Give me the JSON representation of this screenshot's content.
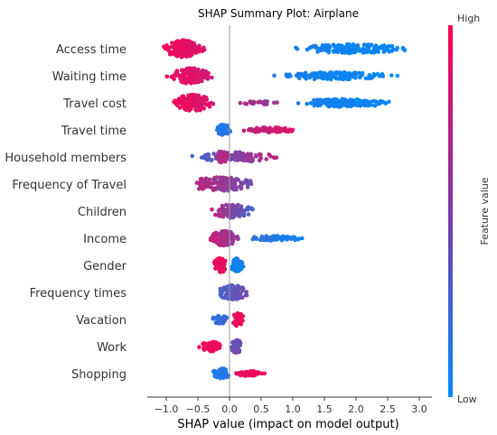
{
  "chart_data": {
    "type": "scatter",
    "subtype": "shap-beeswarm",
    "title": "SHAP Summary Plot: Airplane",
    "xlabel": "SHAP value (impact on model output)",
    "x_ticks": [
      -1.0,
      -0.5,
      0.0,
      0.5,
      1.0,
      1.5,
      2.0,
      2.5,
      3.0
    ],
    "x_tick_labels": [
      "−1.0",
      "−0.5",
      "0.0",
      "0.5",
      "1.0",
      "1.5",
      "2.0",
      "2.5",
      "3.0"
    ],
    "xlim": [
      -1.3,
      3.2
    ],
    "zero_line": true,
    "colorbar": {
      "label": "Feature value",
      "high_label": "High",
      "low_label": "Low",
      "high_color": "#ff0051",
      "low_color": "#008bfb"
    },
    "features": [
      {
        "name": "Access time",
        "clusters": [
          {
            "x0": -1.1,
            "x1": -0.35,
            "n": 140,
            "w": 0.35,
            "v0": 0.95,
            "v1": 0.85
          },
          {
            "x0": 0.9,
            "x1": 3.0,
            "n": 160,
            "w": 0.18,
            "v0": 0.08,
            "v1": 0.02
          }
        ]
      },
      {
        "name": "Waiting time",
        "clusters": [
          {
            "x0": -1.05,
            "x1": -0.2,
            "n": 130,
            "w": 0.32,
            "v0": 0.95,
            "v1": 0.8
          },
          {
            "x0": 0.55,
            "x1": 2.75,
            "n": 150,
            "w": 0.15,
            "v0": 0.1,
            "v1": 0.02
          }
        ]
      },
      {
        "name": "Travel cost",
        "clusters": [
          {
            "x0": -0.95,
            "x1": -0.2,
            "n": 130,
            "w": 0.33,
            "v0": 0.95,
            "v1": 0.82
          },
          {
            "x0": 0.05,
            "x1": 0.8,
            "n": 25,
            "w": 0.08,
            "v0": 0.75,
            "v1": 0.55
          },
          {
            "x0": 0.9,
            "x1": 2.75,
            "n": 150,
            "w": 0.16,
            "v0": 0.1,
            "v1": 0.02
          }
        ]
      },
      {
        "name": "Travel time",
        "clusters": [
          {
            "x0": -0.25,
            "x1": 0.05,
            "n": 50,
            "w": 0.22,
            "v0": 0.1,
            "v1": 0.2
          },
          {
            "x0": 0.1,
            "x1": 1.15,
            "n": 90,
            "w": 0.1,
            "v0": 0.7,
            "v1": 0.92
          }
        ]
      },
      {
        "name": "Household members",
        "clusters": [
          {
            "x0": -0.7,
            "x1": 0.9,
            "n": 110,
            "w": 0.2,
            "v0": 0.2,
            "v1": 0.8
          },
          {
            "x0": -0.25,
            "x1": 0.0,
            "n": 50,
            "w": 0.25,
            "v0": 0.6,
            "v1": 0.75
          }
        ]
      },
      {
        "name": "Frequency of Travel",
        "clusters": [
          {
            "x0": -0.8,
            "x1": 0.55,
            "n": 130,
            "w": 0.28,
            "v0": 0.85,
            "v1": 0.35
          }
        ]
      },
      {
        "name": "Children",
        "clusters": [
          {
            "x0": -0.35,
            "x1": 0.45,
            "n": 110,
            "w": 0.28,
            "v0": 0.8,
            "v1": 0.2
          }
        ]
      },
      {
        "name": "Income",
        "clusters": [
          {
            "x0": -0.4,
            "x1": 0.2,
            "n": 100,
            "w": 0.3,
            "v0": 0.85,
            "v1": 0.5
          },
          {
            "x0": 0.2,
            "x1": 1.3,
            "n": 60,
            "w": 0.1,
            "v0": 0.2,
            "v1": 0.05
          }
        ]
      },
      {
        "name": "Gender",
        "clusters": [
          {
            "x0": -0.3,
            "x1": 0.0,
            "n": 60,
            "w": 0.3,
            "v0": 0.95,
            "v1": 0.9
          },
          {
            "x0": 0.0,
            "x1": 0.25,
            "n": 50,
            "w": 0.28,
            "v0": 0.1,
            "v1": 0.05
          }
        ]
      },
      {
        "name": "Frequency times",
        "clusters": [
          {
            "x0": -0.25,
            "x1": 0.35,
            "n": 120,
            "w": 0.3,
            "v0": 0.25,
            "v1": 0.5
          }
        ]
      },
      {
        "name": "Vacation",
        "clusters": [
          {
            "x0": -0.3,
            "x1": 0.0,
            "n": 45,
            "w": 0.18,
            "v0": 0.15,
            "v1": 0.3
          },
          {
            "x0": 0.02,
            "x1": 0.25,
            "n": 45,
            "w": 0.28,
            "v0": 0.9,
            "v1": 0.95
          }
        ]
      },
      {
        "name": "Work",
        "clusters": [
          {
            "x0": -0.55,
            "x1": -0.05,
            "n": 50,
            "w": 0.2,
            "v0": 0.9,
            "v1": 0.95
          },
          {
            "x0": 0.0,
            "x1": 0.22,
            "n": 60,
            "w": 0.28,
            "v0": 0.35,
            "v1": 0.5
          }
        ]
      },
      {
        "name": "Shopping",
        "clusters": [
          {
            "x0": -0.3,
            "x1": 0.05,
            "n": 50,
            "w": 0.22,
            "v0": 0.1,
            "v1": 0.15
          },
          {
            "x0": 0.05,
            "x1": 0.6,
            "n": 60,
            "w": 0.1,
            "v0": 0.9,
            "v1": 0.95
          }
        ]
      }
    ]
  }
}
